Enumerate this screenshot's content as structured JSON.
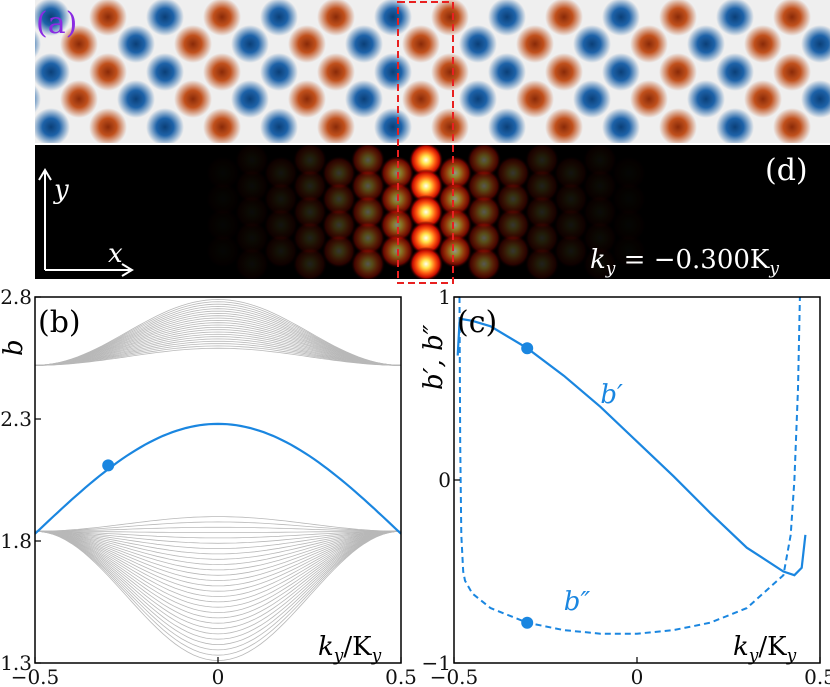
{
  "colors": {
    "line": "#1a86e0",
    "band": "#b8b8b8",
    "highlight": "#e82020",
    "panel_a_label": "#8a2be2",
    "red_lobe": "#b23a0c",
    "blue_lobe": "#0f4f8c"
  },
  "panel_a": {
    "label": "(a)"
  },
  "panel_d": {
    "label": "(d)",
    "x_axis": "x",
    "y_axis": "y",
    "ky_label": "k",
    "ky_sub": "y",
    "ky_eq": " = −0.300K",
    "ky_eq_sub": "y",
    "intensity": [
      0.02,
      0.04,
      0.07,
      0.12,
      0.2,
      0.32,
      0.5,
      1.0,
      0.55,
      0.33,
      0.2,
      0.12,
      0.07,
      0.04,
      0.02
    ]
  },
  "chart_data": [
    {
      "id": "b",
      "type": "line",
      "panel_label": "(b)",
      "ylabel": "b",
      "xlabel": "k_y/K_y",
      "xlabel_main": "k",
      "xlabel_sub": "y",
      "xlabel_div": "/K",
      "xlabel_sub2": "y",
      "xlim": [
        -0.5,
        0.5
      ],
      "ylim": [
        1.3,
        2.8
      ],
      "xticks": [
        "−0.5",
        "0",
        "0.5"
      ],
      "yticks": [
        "1.3",
        "1.8",
        "2.3",
        "2.8"
      ],
      "ytick_values": [
        1.3,
        1.8,
        2.3,
        2.8
      ],
      "edge_state": {
        "x": [
          -0.5,
          -0.4,
          -0.3,
          -0.2,
          -0.1,
          0,
          0.1,
          0.2,
          0.3,
          0.4,
          0.5
        ],
        "y": [
          1.83,
          1.99,
          2.11,
          2.2,
          2.26,
          2.28,
          2.26,
          2.2,
          2.11,
          1.99,
          1.83
        ]
      },
      "marker": {
        "x": -0.3,
        "y": 2.11
      },
      "upper_bands": {
        "count": 22,
        "edge_value": 2.52,
        "top_min": 2.59,
        "top_max": 2.79
      },
      "lower_bands": {
        "count": 28,
        "edge_value": 1.84,
        "top_center": 1.9,
        "bottom_center": 1.31
      }
    },
    {
      "id": "c",
      "type": "line",
      "panel_label": "(c)",
      "ylabel": "b', b''",
      "ylabel_parts": [
        "b′",
        ", ",
        "b″"
      ],
      "xlabel": "k_y/K_y",
      "xlim": [
        -0.5,
        0.5
      ],
      "ylim": [
        -1,
        1
      ],
      "xticks": [
        "−0.5",
        "0",
        "0.5"
      ],
      "yticks": [
        "−1",
        "0",
        "1"
      ],
      "ytick_values": [
        -1,
        0,
        1
      ],
      "series": [
        {
          "name": "b′",
          "style": "solid",
          "x": [
            -0.49,
            -0.485,
            -0.48,
            -0.45,
            -0.4,
            -0.3,
            -0.2,
            -0.1,
            0,
            0.1,
            0.2,
            0.3,
            0.4,
            0.43,
            0.45,
            0.46
          ],
          "y": [
            0.68,
            0.86,
            0.88,
            0.87,
            0.84,
            0.72,
            0.57,
            0.4,
            0.21,
            0.02,
            -0.18,
            -0.37,
            -0.5,
            -0.52,
            -0.48,
            -0.3
          ]
        },
        {
          "name": "b″",
          "style": "dashed",
          "x": [
            -0.485,
            -0.483,
            -0.48,
            -0.475,
            -0.47,
            -0.45,
            -0.4,
            -0.3,
            -0.2,
            -0.1,
            0,
            0.1,
            0.2,
            0.3,
            0.4,
            0.42,
            0.43,
            0.44,
            0.445
          ],
          "y": [
            1.0,
            0.2,
            -0.3,
            -0.5,
            -0.55,
            -0.62,
            -0.7,
            -0.78,
            -0.82,
            -0.84,
            -0.84,
            -0.82,
            -0.78,
            -0.7,
            -0.52,
            -0.3,
            0.0,
            0.5,
            1.0
          ]
        }
      ],
      "markers": [
        {
          "x": -0.3,
          "y": 0.72
        },
        {
          "x": -0.3,
          "y": -0.78
        }
      ],
      "series_labels": [
        {
          "text": "b′",
          "x": -0.1,
          "y": 0.42
        },
        {
          "text": "b″",
          "x": -0.2,
          "y": -0.71
        }
      ]
    }
  ]
}
